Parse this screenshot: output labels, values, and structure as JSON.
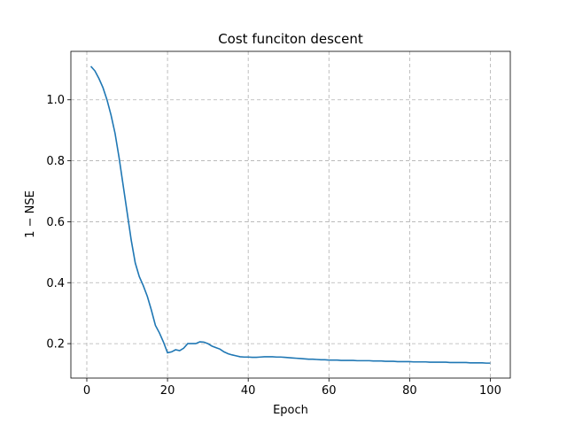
{
  "chart_data": {
    "type": "line",
    "title": "Cost funciton descent",
    "xlabel": "Epoch",
    "ylabel": "1 − NSE",
    "x": [
      1,
      2,
      3,
      4,
      5,
      6,
      7,
      8,
      9,
      10,
      11,
      12,
      13,
      14,
      15,
      16,
      17,
      18,
      19,
      20,
      21,
      22,
      23,
      24,
      25,
      26,
      27,
      28,
      29,
      30,
      31,
      32,
      33,
      34,
      35,
      36,
      37,
      38,
      39,
      40,
      41,
      42,
      43,
      44,
      45,
      46,
      47,
      48,
      49,
      50,
      51,
      52,
      53,
      54,
      55,
      56,
      57,
      58,
      59,
      60,
      61,
      62,
      63,
      64,
      65,
      66,
      67,
      68,
      69,
      70,
      71,
      72,
      73,
      74,
      75,
      76,
      77,
      78,
      79,
      80,
      81,
      82,
      83,
      84,
      85,
      86,
      87,
      88,
      89,
      90,
      91,
      92,
      93,
      94,
      95,
      96,
      97,
      98,
      99,
      100
    ],
    "series": [
      {
        "name": "cost",
        "color": "#1f77b4",
        "values": [
          1.11,
          1.095,
          1.07,
          1.04,
          1.0,
          0.95,
          0.89,
          0.81,
          0.72,
          0.63,
          0.54,
          0.465,
          0.42,
          0.39,
          0.355,
          0.31,
          0.26,
          0.235,
          0.205,
          0.17,
          0.173,
          0.18,
          0.177,
          0.185,
          0.2,
          0.2,
          0.2,
          0.206,
          0.205,
          0.2,
          0.192,
          0.187,
          0.182,
          0.173,
          0.167,
          0.163,
          0.16,
          0.157,
          0.156,
          0.156,
          0.155,
          0.155,
          0.156,
          0.157,
          0.157,
          0.157,
          0.156,
          0.156,
          0.155,
          0.154,
          0.153,
          0.152,
          0.151,
          0.15,
          0.149,
          0.149,
          0.148,
          0.147,
          0.147,
          0.146,
          0.146,
          0.146,
          0.145,
          0.145,
          0.145,
          0.145,
          0.144,
          0.144,
          0.144,
          0.144,
          0.143,
          0.143,
          0.143,
          0.142,
          0.142,
          0.142,
          0.141,
          0.141,
          0.141,
          0.141,
          0.14,
          0.14,
          0.14,
          0.14,
          0.139,
          0.139,
          0.139,
          0.139,
          0.139,
          0.138,
          0.138,
          0.138,
          0.138,
          0.138,
          0.137,
          0.137,
          0.137,
          0.137,
          0.136,
          0.136
        ]
      }
    ],
    "xlim": [
      -3.95,
      104.95
    ],
    "xticks": [
      0,
      20,
      40,
      60,
      80,
      100
    ],
    "ylim": [
      0.087,
      1.159
    ],
    "yticks": [
      0.2,
      0.4,
      0.6,
      0.8,
      {
        "value": 1,
        "label": "1.0"
      }
    ],
    "grid": true
  }
}
